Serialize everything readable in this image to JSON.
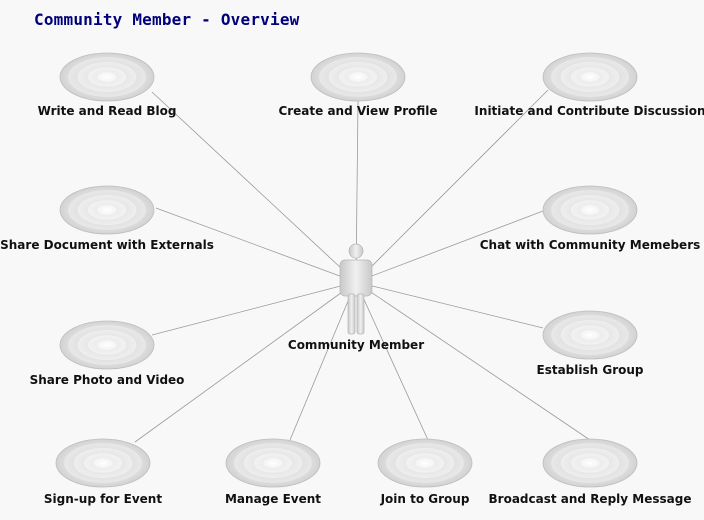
{
  "diagram": {
    "title": "Community Member - Overview",
    "actor": {
      "label": "Community Member"
    },
    "use_cases": [
      {
        "id": "write-and-read-blog",
        "label": "Write and Read Blog"
      },
      {
        "id": "create-and-view-profile",
        "label": "Create and View Profile"
      },
      {
        "id": "initiate-and-contribute-discussion",
        "label": "Initiate and Contribute Discussion"
      },
      {
        "id": "share-document-with-externals",
        "label": "Share Document with Externals"
      },
      {
        "id": "chat-with-community-memebers",
        "label": "Chat with Community Memebers"
      },
      {
        "id": "share-photo-and-video",
        "label": "Share Photo and Video"
      },
      {
        "id": "establish-group",
        "label": "Establish Group"
      },
      {
        "id": "sign-up-for-event",
        "label": "Sign-up for Event"
      },
      {
        "id": "manage-event",
        "label": "Manage Event"
      },
      {
        "id": "join-to-group",
        "label": "Join to Group"
      },
      {
        "id": "broadcast-and-reply-message",
        "label": "Broadcast and Reply Message"
      }
    ],
    "colors": {
      "title": "#00007a",
      "line": "#9a9a9a",
      "ellipse_outer": "#d9d9d9",
      "ellipse_inner": "#f7f7f7",
      "actor_fill": "#dcdcdc"
    }
  }
}
